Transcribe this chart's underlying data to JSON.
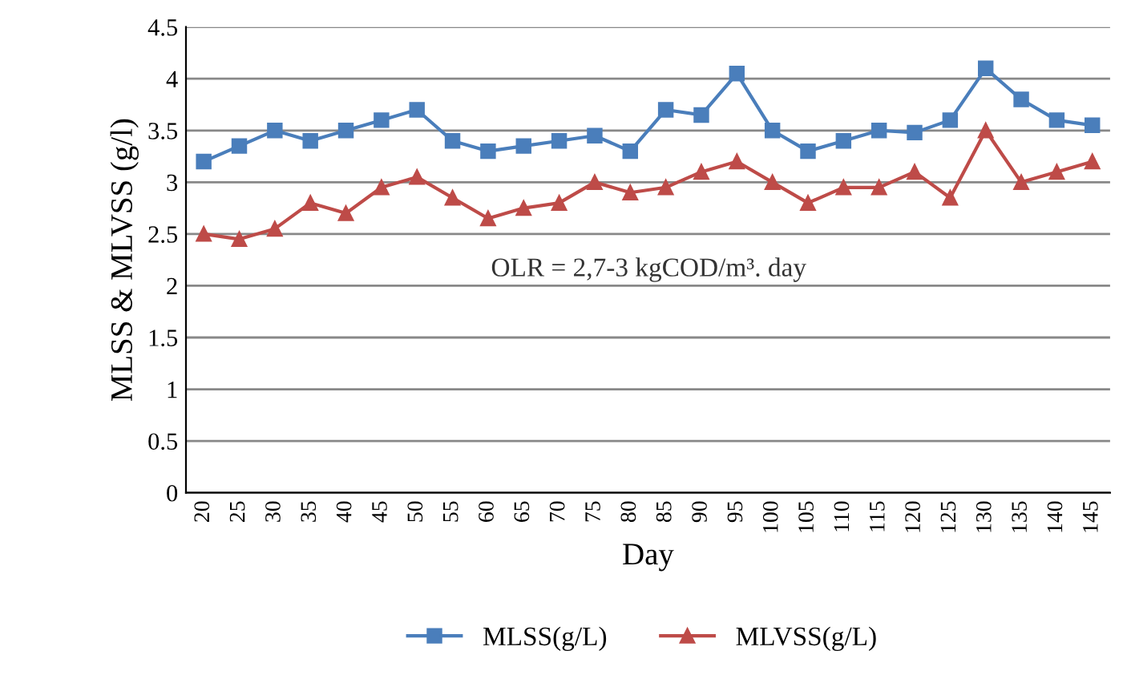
{
  "chart_data": {
    "type": "line",
    "xlabel": "Day",
    "ylabel": "MLSS & MLVSS (g/l)",
    "categories": [
      "20",
      "25",
      "30",
      "35",
      "40",
      "45",
      "50",
      "55",
      "60",
      "65",
      "70",
      "75",
      "80",
      "85",
      "90",
      "95",
      "100",
      "105",
      "110",
      "115",
      "120",
      "125",
      "130",
      "135",
      "140",
      "145"
    ],
    "series": [
      {
        "name": "MLSS(g/L)",
        "color": "#4a7ebb",
        "marker": "square",
        "values": [
          3.2,
          3.35,
          3.5,
          3.4,
          3.5,
          3.6,
          3.7,
          3.4,
          3.3,
          3.35,
          3.4,
          3.45,
          3.3,
          3.7,
          3.65,
          4.05,
          3.5,
          3.3,
          3.4,
          3.5,
          3.48,
          3.6,
          4.1,
          3.8,
          3.6,
          3.55
        ]
      },
      {
        "name": "MLVSS(g/L)",
        "color": "#be4b48",
        "marker": "triangle",
        "values": [
          2.5,
          2.45,
          2.55,
          2.8,
          2.7,
          2.95,
          3.05,
          2.85,
          2.65,
          2.75,
          2.8,
          3.0,
          2.9,
          2.95,
          3.1,
          3.2,
          3.0,
          2.8,
          2.95,
          2.95,
          3.1,
          2.85,
          3.5,
          3.0,
          3.1,
          3.2
        ]
      }
    ],
    "ylim": [
      0,
      4.5
    ],
    "yticks": [
      0,
      0.5,
      1,
      1.5,
      2,
      2.5,
      3,
      3.5,
      4,
      4.5
    ],
    "grid": "y",
    "legend": "bottom",
    "line_style": "solid",
    "annotations": [
      {
        "text": "OLR = 2,7-3 kgCOD/m³. day"
      }
    ]
  }
}
